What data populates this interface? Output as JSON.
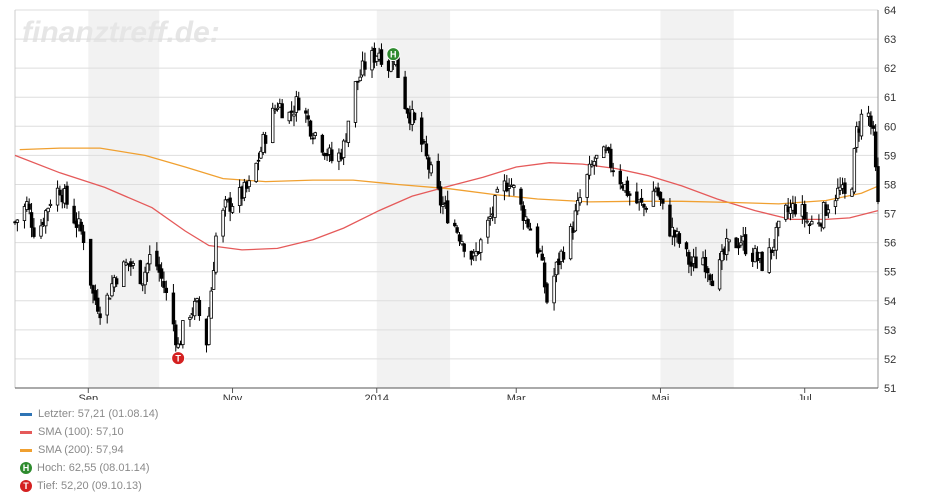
{
  "watermark": "finanztreff.de:",
  "legend": {
    "last": {
      "label": "Letzter: 57,21 (01.08.14)",
      "color": "#2f74b5"
    },
    "sma100": {
      "label": "SMA (100): 57,10",
      "color": "#e55a5a"
    },
    "sma200": {
      "label": "SMA (200): 57,94",
      "color": "#f0a030"
    },
    "high": {
      "label": "Hoch: 62,55 (08.01.14)",
      "marker": "H",
      "color": "#2e8b2e"
    },
    "low": {
      "label": "Tief: 52,20 (09.10.13)",
      "marker": "T",
      "color": "#d42020"
    }
  },
  "chart_data": {
    "type": "candlestick",
    "ylim": [
      51,
      64
    ],
    "y_ticks": [
      51,
      52,
      53,
      54,
      55,
      56,
      57,
      58,
      59,
      60,
      61,
      62,
      63,
      64
    ],
    "x_range": [
      "2013-08-01",
      "2014-08-01"
    ],
    "x_ticks": [
      {
        "date": "2013-09-01",
        "label": "Sep"
      },
      {
        "date": "2013-11-01",
        "label": "Nov"
      },
      {
        "date": "2014-01-01",
        "label": "2014"
      },
      {
        "date": "2014-03-01",
        "label": "Mar"
      },
      {
        "date": "2014-05-01",
        "label": "Mai"
      },
      {
        "date": "2014-07-01",
        "label": "Jul"
      }
    ],
    "shaded_months": [
      [
        "2013-09-01",
        "2013-10-01"
      ],
      [
        "2014-01-01",
        "2014-02-01"
      ],
      [
        "2014-05-01",
        "2014-06-01"
      ]
    ],
    "price_path": [
      [
        "2013-08-01",
        56.7
      ],
      [
        "2013-08-06",
        57.3
      ],
      [
        "2013-08-10",
        56.2
      ],
      [
        "2013-08-16",
        57.5
      ],
      [
        "2013-08-20",
        57.9
      ],
      [
        "2013-08-25",
        57.0
      ],
      [
        "2013-08-30",
        56.2
      ],
      [
        "2013-09-03",
        54.2
      ],
      [
        "2013-09-07",
        53.6
      ],
      [
        "2013-09-12",
        54.8
      ],
      [
        "2013-09-18",
        55.3
      ],
      [
        "2013-09-24",
        54.8
      ],
      [
        "2013-09-28",
        55.7
      ],
      [
        "2013-10-03",
        54.5
      ],
      [
        "2013-10-07",
        53.2
      ],
      [
        "2013-10-09",
        52.4
      ],
      [
        "2013-10-13",
        53.6
      ],
      [
        "2013-10-17",
        53.8
      ],
      [
        "2013-10-21",
        52.6
      ],
      [
        "2013-10-25",
        56.2
      ],
      [
        "2013-10-29",
        57.2
      ],
      [
        "2013-11-04",
        57.6
      ],
      [
        "2013-11-08",
        57.9
      ],
      [
        "2013-11-12",
        58.9
      ],
      [
        "2013-11-16",
        60.0
      ],
      [
        "2013-11-20",
        60.8
      ],
      [
        "2013-11-25",
        60.4
      ],
      [
        "2013-11-29",
        60.9
      ],
      [
        "2013-12-04",
        60.0
      ],
      [
        "2013-12-09",
        59.4
      ],
      [
        "2013-12-14",
        58.7
      ],
      [
        "2013-12-18",
        59.3
      ],
      [
        "2013-12-22",
        61.2
      ],
      [
        "2013-12-27",
        62.1
      ],
      [
        "2014-01-02",
        62.6
      ],
      [
        "2014-01-06",
        62.1
      ],
      [
        "2014-01-08",
        62.5
      ],
      [
        "2014-01-13",
        60.8
      ],
      [
        "2014-01-18",
        59.9
      ],
      [
        "2014-01-23",
        58.6
      ],
      [
        "2014-01-28",
        57.4
      ],
      [
        "2014-02-03",
        56.6
      ],
      [
        "2014-02-07",
        56.0
      ],
      [
        "2014-02-11",
        55.4
      ],
      [
        "2014-02-16",
        56.4
      ],
      [
        "2014-02-21",
        57.5
      ],
      [
        "2014-02-26",
        58.2
      ],
      [
        "2014-03-03",
        57.2
      ],
      [
        "2014-03-07",
        56.5
      ],
      [
        "2014-03-11",
        55.6
      ],
      [
        "2014-03-14",
        54.0
      ],
      [
        "2014-03-19",
        55.4
      ],
      [
        "2014-03-24",
        56.3
      ],
      [
        "2014-03-29",
        57.8
      ],
      [
        "2014-04-03",
        58.8
      ],
      [
        "2014-04-08",
        59.0
      ],
      [
        "2014-04-14",
        58.2
      ],
      [
        "2014-04-19",
        57.5
      ],
      [
        "2014-04-24",
        57.2
      ],
      [
        "2014-04-29",
        57.9
      ],
      [
        "2014-05-04",
        56.6
      ],
      [
        "2014-05-09",
        56.0
      ],
      [
        "2014-05-14",
        55.2
      ],
      [
        "2014-05-19",
        55.5
      ],
      [
        "2014-05-24",
        54.7
      ],
      [
        "2014-05-29",
        55.8
      ],
      [
        "2014-06-04",
        56.1
      ],
      [
        "2014-06-09",
        55.6
      ],
      [
        "2014-06-14",
        55.2
      ],
      [
        "2014-06-18",
        56.0
      ],
      [
        "2014-06-23",
        57.0
      ],
      [
        "2014-06-28",
        57.3
      ],
      [
        "2014-07-03",
        56.6
      ],
      [
        "2014-07-08",
        56.9
      ],
      [
        "2014-07-12",
        57.5
      ],
      [
        "2014-07-16",
        57.8
      ],
      [
        "2014-07-20",
        57.3
      ],
      [
        "2014-07-23",
        59.8
      ],
      [
        "2014-07-27",
        60.8
      ],
      [
        "2014-07-30",
        59.6
      ],
      [
        "2014-08-01",
        57.2
      ]
    ],
    "sma100": [
      [
        "2013-08-01",
        59.0
      ],
      [
        "2013-08-20",
        58.4
      ],
      [
        "2013-09-08",
        57.9
      ],
      [
        "2013-09-28",
        57.2
      ],
      [
        "2013-10-12",
        56.4
      ],
      [
        "2013-10-22",
        55.9
      ],
      [
        "2013-11-05",
        55.75
      ],
      [
        "2013-11-20",
        55.8
      ],
      [
        "2013-12-05",
        56.1
      ],
      [
        "2013-12-18",
        56.5
      ],
      [
        "2014-01-02",
        57.1
      ],
      [
        "2014-01-16",
        57.6
      ],
      [
        "2014-02-01",
        57.95
      ],
      [
        "2014-02-15",
        58.25
      ],
      [
        "2014-03-01",
        58.6
      ],
      [
        "2014-03-15",
        58.75
      ],
      [
        "2014-03-29",
        58.7
      ],
      [
        "2014-04-12",
        58.55
      ],
      [
        "2014-04-26",
        58.3
      ],
      [
        "2014-05-10",
        57.95
      ],
      [
        "2014-05-25",
        57.5
      ],
      [
        "2014-06-10",
        57.1
      ],
      [
        "2014-06-25",
        56.8
      ],
      [
        "2014-07-10",
        56.8
      ],
      [
        "2014-07-20",
        56.85
      ],
      [
        "2014-08-01",
        57.1
      ]
    ],
    "sma200": [
      [
        "2013-08-03",
        59.2
      ],
      [
        "2013-08-20",
        59.25
      ],
      [
        "2013-09-06",
        59.25
      ],
      [
        "2013-09-25",
        59.0
      ],
      [
        "2013-10-12",
        58.6
      ],
      [
        "2013-10-28",
        58.2
      ],
      [
        "2013-11-15",
        58.1
      ],
      [
        "2013-12-05",
        58.15
      ],
      [
        "2013-12-22",
        58.15
      ],
      [
        "2014-01-10",
        58.0
      ],
      [
        "2014-02-01",
        57.85
      ],
      [
        "2014-02-20",
        57.65
      ],
      [
        "2014-03-10",
        57.5
      ],
      [
        "2014-04-01",
        57.4
      ],
      [
        "2014-04-20",
        57.42
      ],
      [
        "2014-05-10",
        57.42
      ],
      [
        "2014-06-01",
        57.38
      ],
      [
        "2014-06-20",
        57.33
      ],
      [
        "2014-07-10",
        57.45
      ],
      [
        "2014-07-25",
        57.7
      ],
      [
        "2014-08-01",
        57.94
      ]
    ],
    "markers": [
      {
        "date": "2014-01-08",
        "value": 62.55,
        "label": "H",
        "color": "#2e8b2e"
      },
      {
        "date": "2013-10-09",
        "value": 52.2,
        "label": "T",
        "color": "#d42020"
      }
    ]
  }
}
